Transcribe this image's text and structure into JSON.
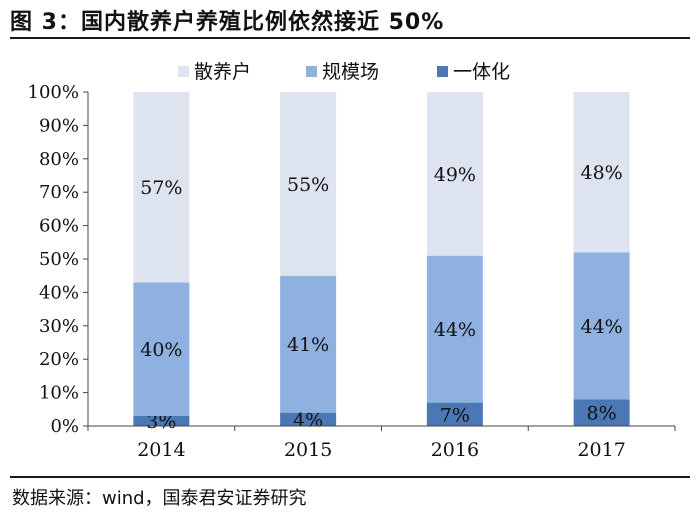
{
  "header": {
    "title": "图 3：国内散养户养殖比例依然接近 50%"
  },
  "footer": {
    "source": "数据来源：wind，国泰君安证券研究"
  },
  "chart_data": {
    "type": "bar",
    "stacked": true,
    "categories": [
      "2014",
      "2015",
      "2016",
      "2017"
    ],
    "series": [
      {
        "name": "一体化",
        "values": [
          3,
          4,
          7,
          8
        ],
        "labels": [
          "3%",
          "4%",
          "7%",
          "8%"
        ],
        "color": "#4a78b5"
      },
      {
        "name": "规模场",
        "values": [
          40,
          41,
          44,
          44
        ],
        "labels": [
          "40%",
          "41%",
          "44%",
          "44%"
        ],
        "color": "#8eb1df"
      },
      {
        "name": "散养户",
        "values": [
          57,
          55,
          49,
          48
        ],
        "labels": [
          "57%",
          "55%",
          "49%",
          "48%"
        ],
        "color": "#dde4f0"
      }
    ],
    "legend_order": [
      "散养户",
      "规模场",
      "一体化"
    ],
    "legend_position": "top",
    "ylim": [
      0,
      100
    ],
    "yticks": [
      "0%",
      "10%",
      "20%",
      "30%",
      "40%",
      "50%",
      "60%",
      "70%",
      "80%",
      "90%",
      "100%"
    ],
    "grid": false
  }
}
